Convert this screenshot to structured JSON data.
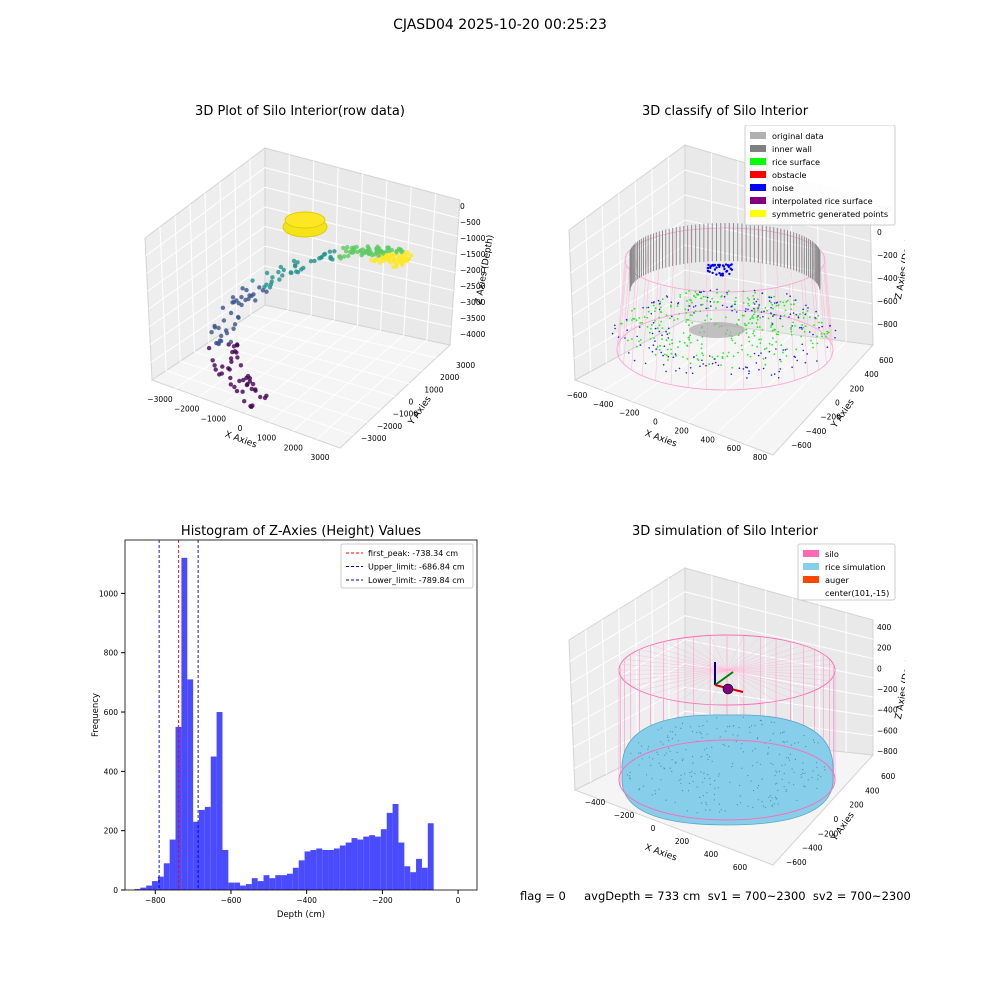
{
  "figure_title": "CJASD04 2025-10-20 00:25:23",
  "footer_text": "flag = 0     avgDepth = 733 cm  sv1 = 700~2300  sv2 = 700~2300",
  "chart_data": [
    {
      "type": "scatter",
      "title": "3D Plot of Silo Interior(row data)",
      "xlabel": "X Axies",
      "ylabel": "Y Axies",
      "zlabel": "Z Axies (Depth)",
      "x_ticks": [
        "−3000",
        "−2000",
        "−1000",
        "0",
        "1000",
        "2000",
        "3000"
      ],
      "y_ticks": [
        "−3000",
        "−2000",
        "−1000",
        "0",
        "1000",
        "2000",
        "3000"
      ],
      "z_ticks": [
        "0",
        "−500",
        "−1000",
        "−1500",
        "−2000",
        "−2500",
        "−3000",
        "−3500",
        "−4000"
      ],
      "xlim": [
        -3500,
        3500
      ],
      "ylim": [
        -3500,
        3500
      ],
      "zlim": [
        -4200,
        200
      ],
      "colormap": "viridis",
      "grid": true
    },
    {
      "type": "scatter",
      "title": "3D classify of Silo Interior",
      "xlabel": "X Axies",
      "ylabel": "Y Axies",
      "zlabel": "Z Axies (Depth)",
      "x_ticks": [
        "−600",
        "−400",
        "−200",
        "0",
        "200",
        "400",
        "600",
        "800"
      ],
      "y_ticks": [
        "−600",
        "−400",
        "−200",
        "0",
        "200",
        "400",
        "600"
      ],
      "z_ticks": [
        "200",
        "0",
        "−200",
        "−400",
        "−600",
        "−800"
      ],
      "zlim": [
        -900,
        300
      ],
      "legend_position": "top-right",
      "legend": [
        {
          "label": "original data",
          "color": "#b0b0b0"
        },
        {
          "label": "inner wall",
          "color": "#808080"
        },
        {
          "label": "rice surface",
          "color": "#00ff00"
        },
        {
          "label": "obstacle",
          "color": "#ff0000"
        },
        {
          "label": "noise",
          "color": "#0000ff"
        },
        {
          "label": "interpolated rice surface",
          "color": "#800080"
        },
        {
          "label": "symmetric generated points",
          "color": "#ffff00"
        }
      ],
      "grid": true
    },
    {
      "type": "bar",
      "title": "Histogram of Z-Axies (Height) Values",
      "xlabel": "Depth (cm)",
      "ylabel": "Frequency",
      "bin_start": -855,
      "bin_width": 15.5,
      "values": [
        3,
        8,
        15,
        30,
        45,
        90,
        170,
        550,
        1120,
        710,
        230,
        270,
        280,
        450,
        600,
        135,
        25,
        25,
        15,
        20,
        40,
        30,
        50,
        40,
        50,
        50,
        55,
        75,
        100,
        130,
        135,
        140,
        135,
        135,
        140,
        150,
        160,
        175,
        170,
        180,
        185,
        180,
        205,
        260,
        290,
        160,
        80,
        60,
        105,
        75,
        225
      ],
      "xlim": [
        -880,
        50
      ],
      "ylim": [
        0,
        1180
      ],
      "x_ticks": [
        -800,
        -600,
        -400,
        -200,
        0
      ],
      "y_ticks": [
        0,
        200,
        400,
        600,
        800,
        1000
      ],
      "bar_color": "#4a4aff",
      "vlines": [
        {
          "label": "first_peak: -738.34 cm",
          "value": -738.34,
          "color": "#ff0000"
        },
        {
          "label": "Upper_limit: -686.84 cm",
          "value": -686.84,
          "color": "#0000cc"
        },
        {
          "label": "Lower_limit: -789.84 cm",
          "value": -789.84,
          "color": "#0000cc"
        }
      ],
      "legend_position": "top-right"
    },
    {
      "type": "scatter",
      "title": "3D simulation of Silo Interior",
      "xlabel": "X Axies",
      "ylabel": "Y Axies",
      "zlabel": "Z Axies (Depth)",
      "x_ticks": [
        "−400",
        "−200",
        "0",
        "200",
        "400",
        "600"
      ],
      "y_ticks": [
        "−600",
        "−400",
        "−200",
        "0",
        "200",
        "400",
        "600"
      ],
      "z_ticks": [
        "400",
        "200",
        "0",
        "−200",
        "−400",
        "−600",
        "−800"
      ],
      "legend_position": "top-right",
      "legend": [
        {
          "label": "silo",
          "color": "#ff69b4"
        },
        {
          "label": "rice simulation",
          "color": "#87ceeb"
        },
        {
          "label": "auger",
          "color": "#ff4500"
        },
        {
          "label": "center(101,-15)",
          "color": ""
        }
      ],
      "grid": true
    }
  ]
}
